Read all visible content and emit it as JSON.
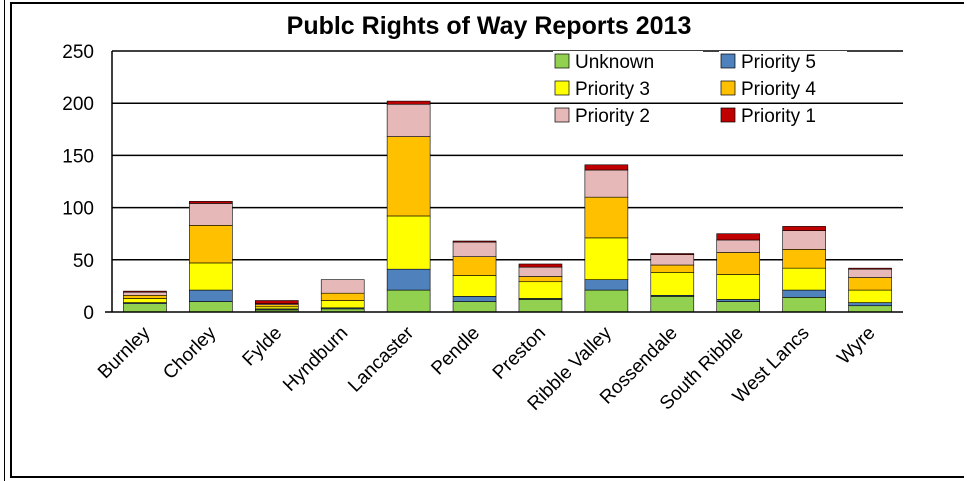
{
  "chart_data": {
    "type": "bar",
    "stacked": true,
    "title": "Publc Rights of Way Reports 2013",
    "xlabel": "",
    "ylabel": "",
    "ylim": [
      0,
      250
    ],
    "yticks": [
      0,
      50,
      100,
      150,
      200,
      250
    ],
    "grid": true,
    "legend_position": "top-right",
    "categories": [
      "Burnley",
      "Chorley",
      "Fylde",
      "Hyndburn",
      "Lancaster",
      "Pendle",
      "Preston",
      "Ribble Valley",
      "Rossendale",
      "South Ribble",
      "West Lancs",
      "Wyre"
    ],
    "series": [
      {
        "name": "Unknown",
        "color": "#92d050",
        "values": [
          8,
          10,
          2,
          3,
          21,
          10,
          12,
          21,
          15,
          10,
          14,
          6
        ]
      },
      {
        "name": "Priority 5",
        "color": "#4f81bd",
        "values": [
          1,
          11,
          1,
          1,
          20,
          5,
          1,
          10,
          1,
          2,
          7,
          3
        ]
      },
      {
        "name": "Priority 3",
        "color": "#ffff00",
        "values": [
          4,
          26,
          2,
          7,
          51,
          20,
          16,
          40,
          22,
          24,
          21,
          12
        ]
      },
      {
        "name": "Priority 4",
        "color": "#ffc000",
        "values": [
          3,
          36,
          2,
          7,
          76,
          18,
          5,
          39,
          7,
          21,
          18,
          12
        ]
      },
      {
        "name": "Priority 2",
        "color": "#e6b8b7",
        "values": [
          3,
          21,
          1,
          13,
          31,
          14,
          9,
          26,
          10,
          12,
          18,
          8
        ]
      },
      {
        "name": "Priority 1",
        "color": "#c00000",
        "values": [
          1,
          2,
          3,
          0,
          3,
          1,
          3,
          5,
          1,
          6,
          4,
          1
        ]
      }
    ],
    "legend_order": [
      "Unknown",
      "Priority 5",
      "Priority 3",
      "Priority 4",
      "Priority 2",
      "Priority 1"
    ]
  }
}
